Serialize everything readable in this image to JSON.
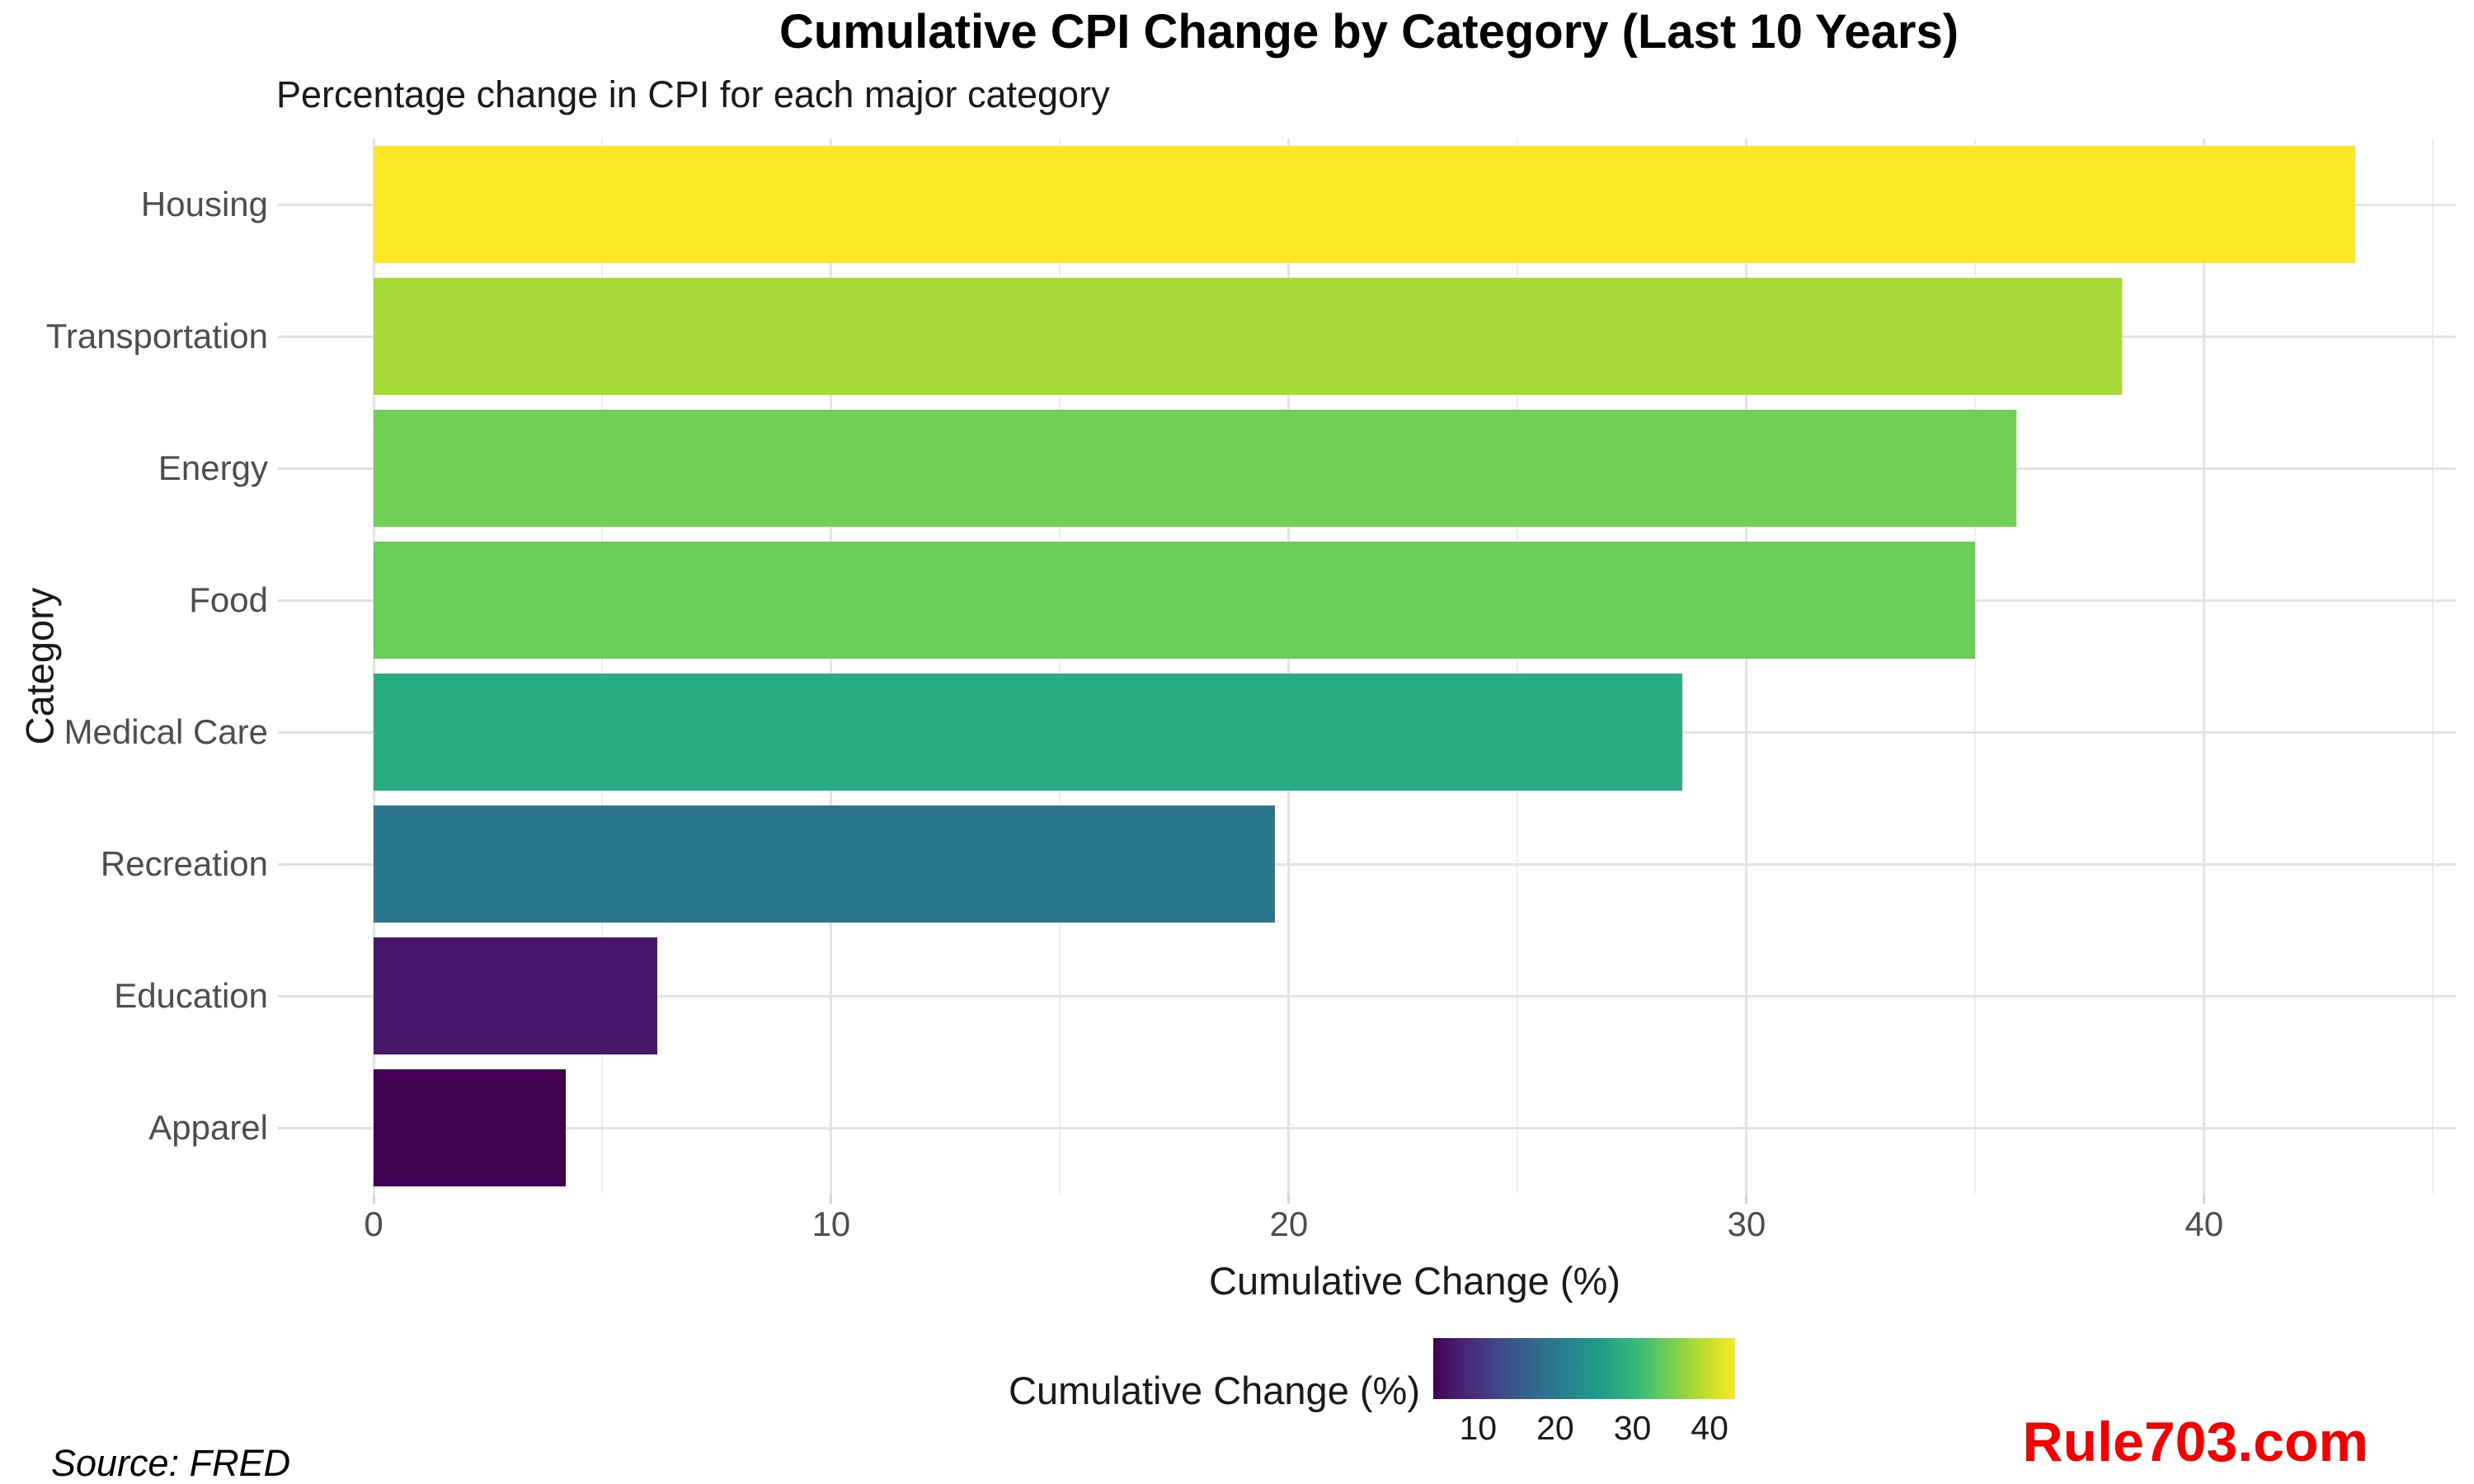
{
  "header": {
    "title": "Cumulative CPI Change by Category (Last 10 Years)",
    "subtitle": "Percentage change in CPI for each major category"
  },
  "footer": {
    "source_note": "Source: FRED",
    "watermark": "Rule703.com",
    "watermark_color": "#F40000"
  },
  "chart_data": {
    "type": "bar",
    "orientation": "horizontal",
    "title": "Cumulative CPI Change by Category (Last 10 Years)",
    "subtitle": "Percentage change in CPI for each major category",
    "xlabel": "Cumulative Change (%)",
    "ylabel": "Category",
    "categories": [
      "Housing",
      "Transportation",
      "Energy",
      "Food",
      "Medical Care",
      "Recreation",
      "Education",
      "Apparel"
    ],
    "values": [
      43.3,
      38.2,
      35.9,
      35.0,
      28.6,
      19.7,
      6.2,
      4.2
    ],
    "bar_colors": [
      "#FDE725",
      "#A5DB36",
      "#73D056",
      "#6BCD59",
      "#27AD81",
      "#2A788E",
      "#481769",
      "#440154"
    ],
    "xlim": [
      0,
      45.5
    ],
    "x_major_ticks": [
      0,
      10,
      20,
      30,
      40
    ],
    "x_minor_ticks": [
      5,
      15,
      25,
      35,
      45
    ],
    "grid": true,
    "axis_text_color": "#4D4D4D",
    "gridline_color": "#E4E4E4",
    "legend": {
      "title": "Cumulative Change (%)",
      "position": "bottom",
      "type": "colorbar",
      "domain": [
        4.2,
        43.3
      ],
      "tick_values": [
        10,
        20,
        30,
        40
      ],
      "gradient": [
        "#440154",
        "#482878",
        "#3E4A89",
        "#31688E",
        "#26828E",
        "#1F9E89",
        "#35B779",
        "#6ECE58",
        "#B5DE2B",
        "#FDE725"
      ]
    }
  }
}
